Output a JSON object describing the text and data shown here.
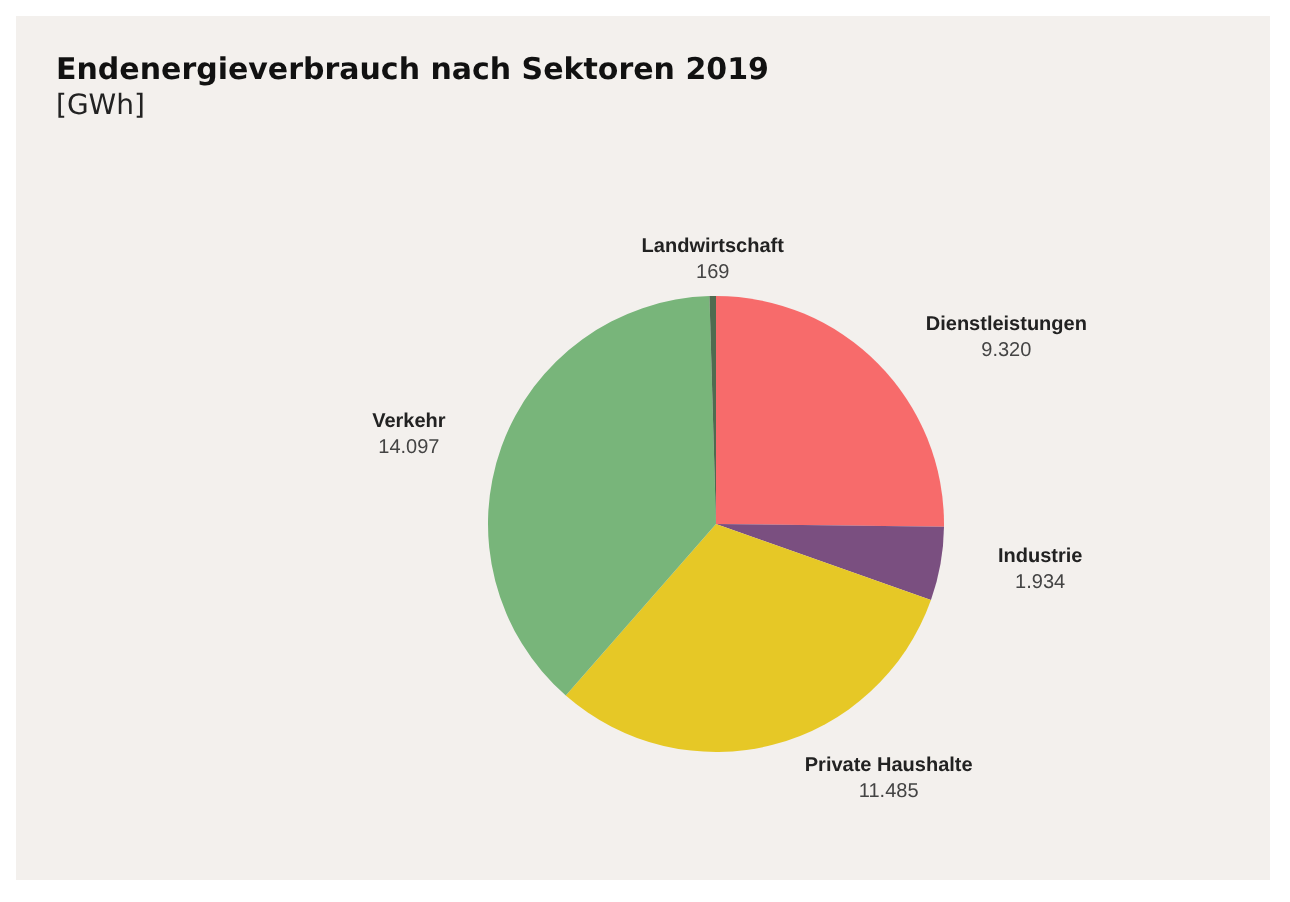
{
  "chart_data": {
    "type": "pie",
    "title": "Endenergieverbrauch nach Sektoren 2019",
    "subtitle": "[GWh]",
    "categories": [
      "Dienstleistungen",
      "Industrie",
      "Private Haushalte",
      "Verkehr",
      "Landwirtschaft"
    ],
    "values": [
      9320,
      1934,
      11485,
      14097,
      169
    ],
    "value_labels": [
      "9.320",
      "1.934",
      "11.485",
      "14.097",
      "169"
    ],
    "colors": [
      "#f76b6b",
      "#7a4f80",
      "#e6c826",
      "#78b57a",
      "#4f6b50"
    ]
  }
}
